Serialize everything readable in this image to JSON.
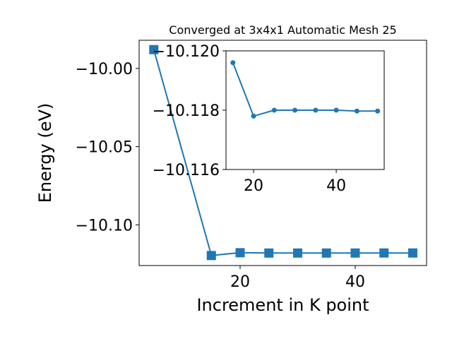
{
  "chart_data": [
    {
      "type": "line",
      "title": "Converged at 3x4x1 Automatic Mesh 25",
      "x_label": "Increment in K point",
      "y_label": "Energy (eV)",
      "x": [
        5,
        15,
        20,
        25,
        30,
        35,
        40,
        45,
        50
      ],
      "series": [
        {
          "name": "Energy",
          "color": "#1f77b4",
          "marker": "square",
          "values": [
            -9.988,
            -10.1196,
            -10.1178,
            -10.118,
            -10.118,
            -10.118,
            -10.118,
            -10.11797,
            -10.11797
          ]
        }
      ],
      "xlim": [
        2.45,
        52.4
      ],
      "ylim": [
        -10.126,
        -9.982
      ],
      "xticks": [
        20,
        40
      ],
      "yticks": [
        {
          "value": -10.1,
          "label": "−10.10"
        },
        {
          "value": -10.05,
          "label": "−10.05"
        },
        {
          "value": -10,
          "label": "−10.00"
        }
      ]
    },
    {
      "type": "line",
      "inverted_y": true,
      "x": [
        15,
        20,
        25,
        30,
        35,
        40,
        45,
        50
      ],
      "series": [
        {
          "name": "Energy",
          "color": "#1f77b4",
          "marker": "circle",
          "values": [
            -10.1196,
            -10.1178,
            -10.118,
            -10.118,
            -10.118,
            -10.118,
            -10.11797,
            -10.11797
          ]
        }
      ],
      "xlim": [
        13.33,
        51.6
      ],
      "ylim": [
        -10.12,
        -10.116
      ],
      "xticks": [
        20,
        40
      ],
      "yticks": [
        {
          "value": -10.12,
          "label": "−10.120"
        },
        {
          "value": -10.118,
          "label": "−10.118"
        },
        {
          "value": -10.116,
          "label": "−10.116"
        }
      ]
    }
  ]
}
